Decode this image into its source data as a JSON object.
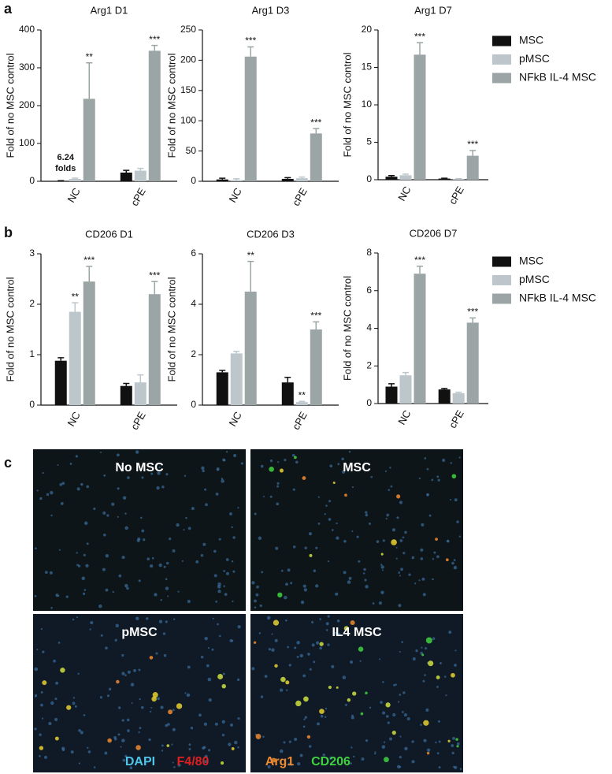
{
  "panel_labels": [
    "a",
    "b",
    "c"
  ],
  "chart_data": [
    {
      "type": "bar",
      "title": "Arg1 D1",
      "ylabel": "Fold of no MSC control",
      "categories": [
        "NC",
        "cPE"
      ],
      "ylim": [
        0,
        400
      ],
      "yticks": [
        0,
        100,
        200,
        300,
        400
      ],
      "annotations": [
        "6.24",
        "folds"
      ],
      "series": [
        {
          "name": "MSC",
          "color": "#111111",
          "values": [
            1,
            23
          ],
          "errors": [
            0.5,
            6
          ],
          "stars": [
            null,
            null
          ]
        },
        {
          "name": "pMSC",
          "color": "#bcc6cb",
          "values": [
            6.24,
            28
          ],
          "errors": [
            2,
            6
          ],
          "stars": [
            null,
            null
          ]
        },
        {
          "name": "NFkB IL-4 MSC",
          "color": "#9ca5a5",
          "values": [
            218,
            345
          ],
          "errors": [
            95,
            14
          ],
          "stars": [
            "**",
            "***"
          ]
        }
      ]
    },
    {
      "type": "bar",
      "title": "Arg1 D3",
      "ylabel": "Fold of no MSC control",
      "categories": [
        "NC",
        "cPE"
      ],
      "ylim": [
        0,
        250
      ],
      "yticks": [
        0,
        50,
        100,
        150,
        200,
        250
      ],
      "series": [
        {
          "name": "MSC",
          "color": "#111111",
          "values": [
            3,
            4
          ],
          "errors": [
            2,
            2
          ],
          "stars": [
            null,
            null
          ]
        },
        {
          "name": "pMSC",
          "color": "#bcc6cb",
          "values": [
            2,
            5
          ],
          "errors": [
            2,
            2
          ],
          "stars": [
            null,
            null
          ]
        },
        {
          "name": "NFkB IL-4 MSC",
          "color": "#9ca5a5",
          "values": [
            206,
            79
          ],
          "errors": [
            16,
            8
          ],
          "stars": [
            "***",
            "***"
          ]
        }
      ]
    },
    {
      "type": "bar",
      "title": "Arg1 D7",
      "ylabel": "Fold of no MSC control",
      "categories": [
        "NC",
        "cPE"
      ],
      "ylim": [
        0,
        20
      ],
      "yticks": [
        0,
        5,
        10,
        15,
        20
      ],
      "legend": "right",
      "series": [
        {
          "name": "MSC",
          "color": "#111111",
          "values": [
            0.4,
            0.15
          ],
          "errors": [
            0.15,
            0.05
          ],
          "stars": [
            null,
            null
          ]
        },
        {
          "name": "pMSC",
          "color": "#bcc6cb",
          "values": [
            0.6,
            0.1
          ],
          "errors": [
            0.15,
            0.05
          ],
          "stars": [
            null,
            null
          ]
        },
        {
          "name": "NFkB IL-4 MSC",
          "color": "#9ca5a5",
          "values": [
            16.7,
            3.2
          ],
          "errors": [
            1.6,
            0.7
          ],
          "stars": [
            "***",
            "***"
          ]
        }
      ]
    },
    {
      "type": "bar",
      "title": "CD206 D1",
      "ylabel": "Fold of no MSC control",
      "categories": [
        "NC",
        "cPE"
      ],
      "ylim": [
        0,
        3
      ],
      "yticks": [
        0,
        1,
        2,
        3
      ],
      "series": [
        {
          "name": "MSC",
          "color": "#111111",
          "values": [
            0.88,
            0.38
          ],
          "errors": [
            0.06,
            0.05
          ],
          "stars": [
            null,
            null
          ]
        },
        {
          "name": "pMSC",
          "color": "#bcc6cb",
          "values": [
            1.85,
            0.45
          ],
          "errors": [
            0.18,
            0.15
          ],
          "stars": [
            "**",
            null
          ]
        },
        {
          "name": "NFkB IL-4 MSC",
          "color": "#9ca5a5",
          "values": [
            2.45,
            2.2
          ],
          "errors": [
            0.3,
            0.25
          ],
          "stars": [
            "***",
            "***"
          ]
        }
      ]
    },
    {
      "type": "bar",
      "title": "CD206 D3",
      "ylabel": "Fold of no MSC control",
      "categories": [
        "NC",
        "cPE"
      ],
      "ylim": [
        0,
        6
      ],
      "yticks": [
        0,
        2,
        4,
        6
      ],
      "series": [
        {
          "name": "MSC",
          "color": "#111111",
          "values": [
            1.3,
            0.9
          ],
          "errors": [
            0.08,
            0.2
          ],
          "stars": [
            null,
            null
          ]
        },
        {
          "name": "pMSC",
          "color": "#bcc6cb",
          "values": [
            2.05,
            0.12
          ],
          "errors": [
            0.08,
            0.03
          ],
          "stars": [
            null,
            "**"
          ]
        },
        {
          "name": "NFkB IL-4 MSC",
          "color": "#9ca5a5",
          "values": [
            4.5,
            3.0
          ],
          "errors": [
            1.2,
            0.3
          ],
          "stars": [
            "**",
            "***"
          ]
        }
      ]
    },
    {
      "type": "bar",
      "title": "CD206 D7",
      "ylabel": "Fold of no MSC control",
      "categories": [
        "NC",
        "cPE"
      ],
      "ylim": [
        0,
        8
      ],
      "yticks": [
        0,
        2,
        4,
        6,
        8
      ],
      "legend": "right",
      "series": [
        {
          "name": "MSC",
          "color": "#111111",
          "values": [
            0.9,
            0.75
          ],
          "errors": [
            0.15,
            0.05
          ],
          "stars": [
            null,
            null
          ]
        },
        {
          "name": "pMSC",
          "color": "#bcc6cb",
          "values": [
            1.5,
            0.55
          ],
          "errors": [
            0.15,
            0.05
          ],
          "stars": [
            null,
            null
          ]
        },
        {
          "name": "NFkB IL-4 MSC",
          "color": "#9ca5a5",
          "values": [
            6.9,
            4.3
          ],
          "errors": [
            0.4,
            0.25
          ],
          "stars": [
            "***",
            "***"
          ]
        }
      ]
    }
  ],
  "images": {
    "panels": [
      "No MSC",
      "MSC",
      "pMSC",
      "IL4 MSC"
    ],
    "stain_legend": [
      {
        "text": "DAPI",
        "color": "#4fc3e8"
      },
      {
        "text": "F4/80",
        "color": "#e02020"
      },
      {
        "text": "Arg1",
        "color": "#f08a30"
      },
      {
        "text": "CD206",
        "color": "#3fd23f"
      }
    ]
  }
}
